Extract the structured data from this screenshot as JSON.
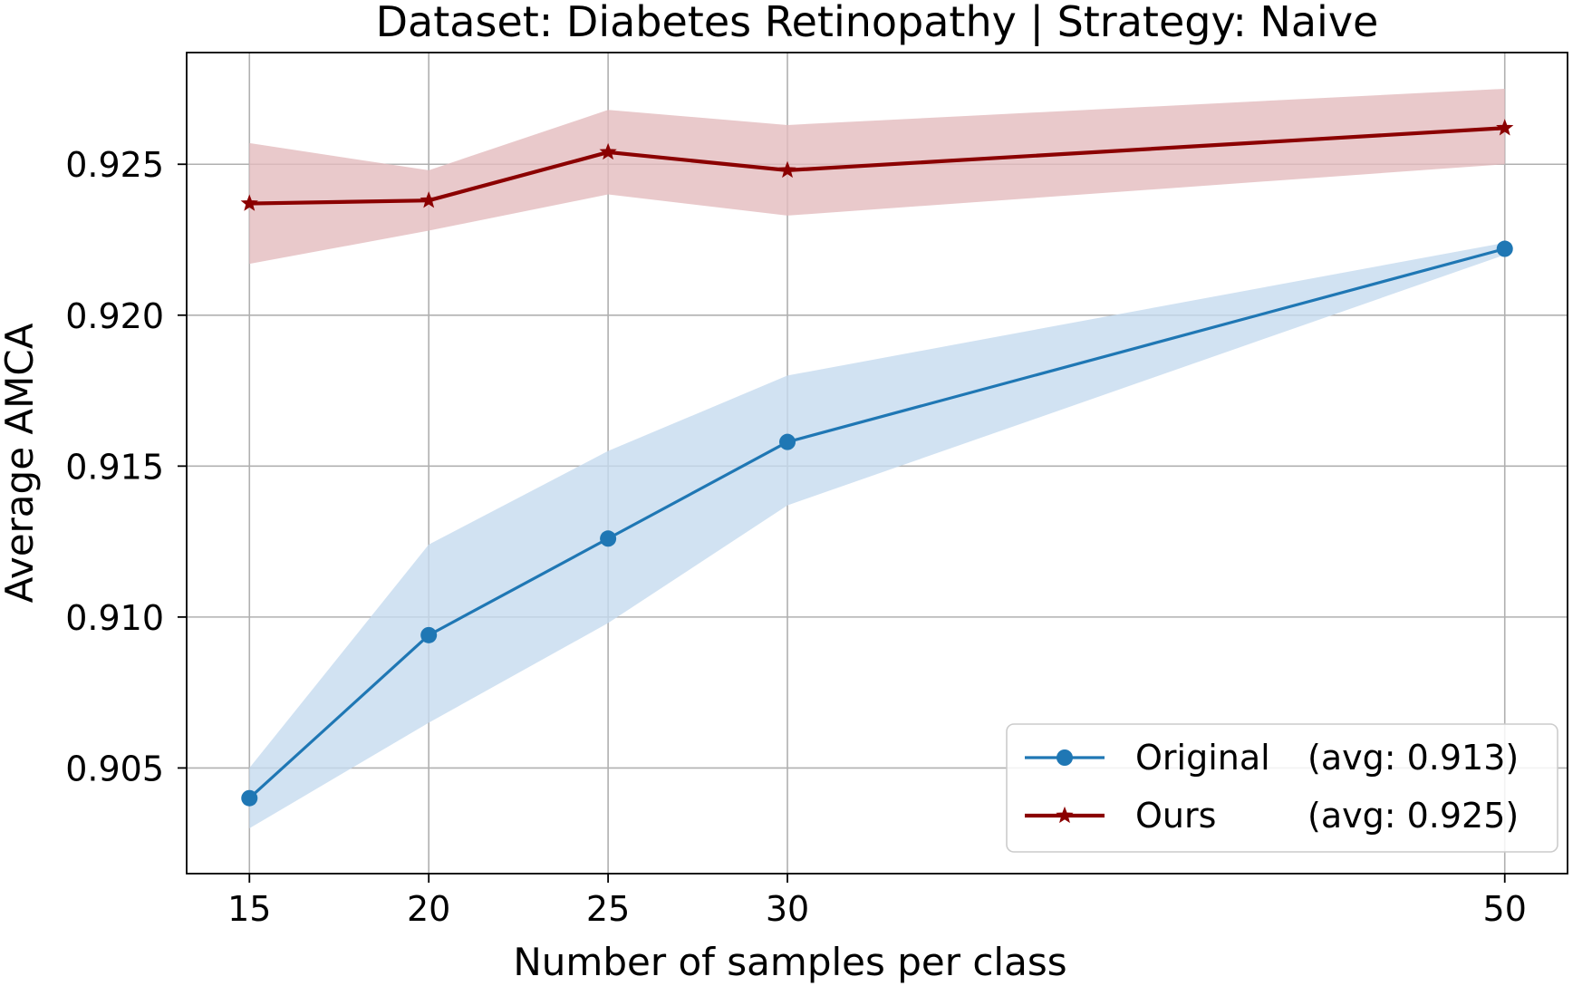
{
  "chart_data": {
    "type": "line",
    "title": "Dataset: Diabetes Retinopathy | Strategy: Naive",
    "xlabel": "Number of samples per class",
    "ylabel": "Average AMCA",
    "x": [
      15,
      20,
      25,
      30,
      50
    ],
    "xlim": [
      13.25,
      51.75
    ],
    "ylim": [
      0.9015,
      0.9287
    ],
    "x_ticks": [
      15,
      20,
      25,
      30,
      50
    ],
    "y_ticks": [
      0.905,
      0.91,
      0.915,
      0.92,
      0.925
    ],
    "y_tick_labels": [
      "0.905",
      "0.910",
      "0.915",
      "0.920",
      "0.925"
    ],
    "grid": true,
    "legend_position": "lower-right",
    "series": [
      {
        "key": "original",
        "legend_name": "Original",
        "legend_avg": "(avg: 0.913)",
        "values": [
          0.904,
          0.9094,
          0.9126,
          0.9158,
          0.9222
        ],
        "band_lower": [
          0.903,
          0.9065,
          0.9098,
          0.9137,
          0.922
        ],
        "band_upper": [
          0.905,
          0.9124,
          0.9155,
          0.918,
          0.9224
        ],
        "color": "#1f77b4",
        "band_color": "#c6dbef",
        "marker": "circle"
      },
      {
        "key": "ours",
        "legend_name": "Ours",
        "legend_avg": "(avg: 0.925)",
        "values": [
          0.9237,
          0.9238,
          0.9254,
          0.9248,
          0.9262
        ],
        "band_lower": [
          0.9217,
          0.9228,
          0.924,
          0.9233,
          0.925
        ],
        "band_upper": [
          0.9257,
          0.9248,
          0.9268,
          0.9263,
          0.9275
        ],
        "color": "#8b0000",
        "band_color": "#e3bcbe",
        "marker": "star"
      }
    ]
  }
}
